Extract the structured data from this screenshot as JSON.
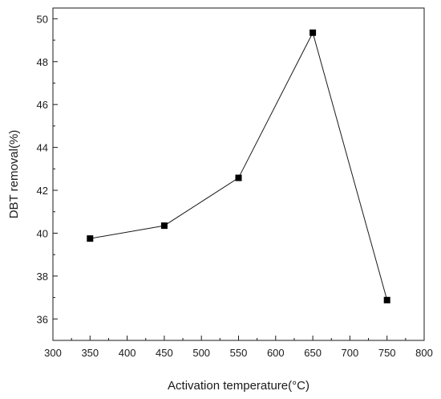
{
  "chart_data": {
    "type": "line",
    "title": "",
    "xlabel": "Activation temperature(°C)",
    "ylabel": "DBT removal(%)",
    "xlim": [
      300,
      800
    ],
    "ylim": [
      35,
      50.5
    ],
    "x_ticks": [
      300,
      350,
      400,
      450,
      500,
      550,
      600,
      650,
      700,
      750,
      800
    ],
    "y_ticks": [
      36,
      38,
      40,
      42,
      44,
      46,
      48,
      50
    ],
    "grid": false,
    "marker": "square",
    "colors": {
      "line": "#1a1a1a",
      "marker": "#000000",
      "axis": "#1a1a1a"
    },
    "series": [
      {
        "x": [
          350,
          450,
          550,
          650,
          750
        ],
        "y": [
          39.75,
          40.35,
          42.58,
          49.35,
          36.88
        ]
      }
    ]
  }
}
